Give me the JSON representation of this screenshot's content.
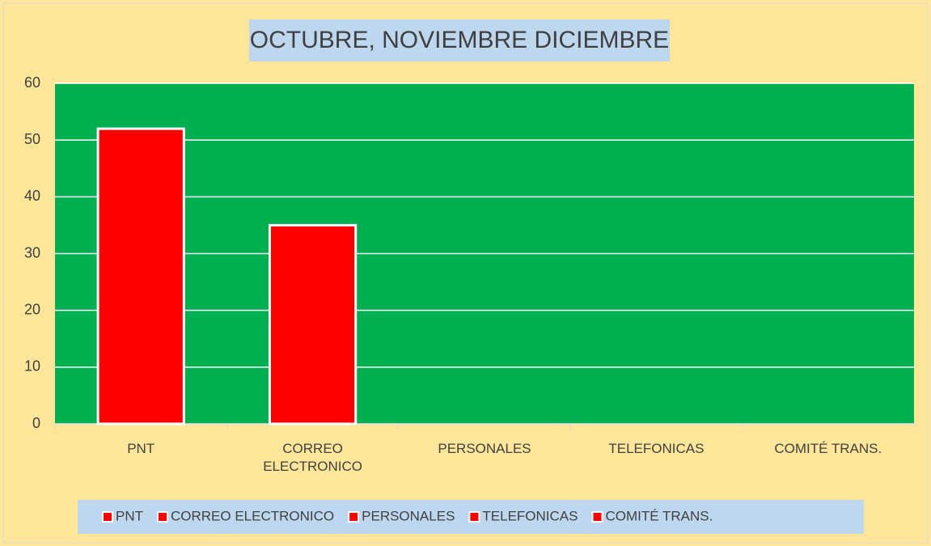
{
  "chart_data": {
    "type": "bar",
    "title": "OCTUBRE, NOVIEMBRE DICIEMBRE",
    "categories": [
      "PNT",
      "CORREO ELECTRONICO",
      "PERSONALES",
      "TELEFONICAS",
      "COMITÉ TRANS."
    ],
    "values": [
      52,
      35,
      0,
      0,
      0
    ],
    "color": "#ff0000",
    "ylim": [
      0,
      60
    ],
    "yticks": [
      0,
      10,
      20,
      30,
      40,
      50,
      60
    ],
    "grid": true,
    "legend": "bottom"
  }
}
